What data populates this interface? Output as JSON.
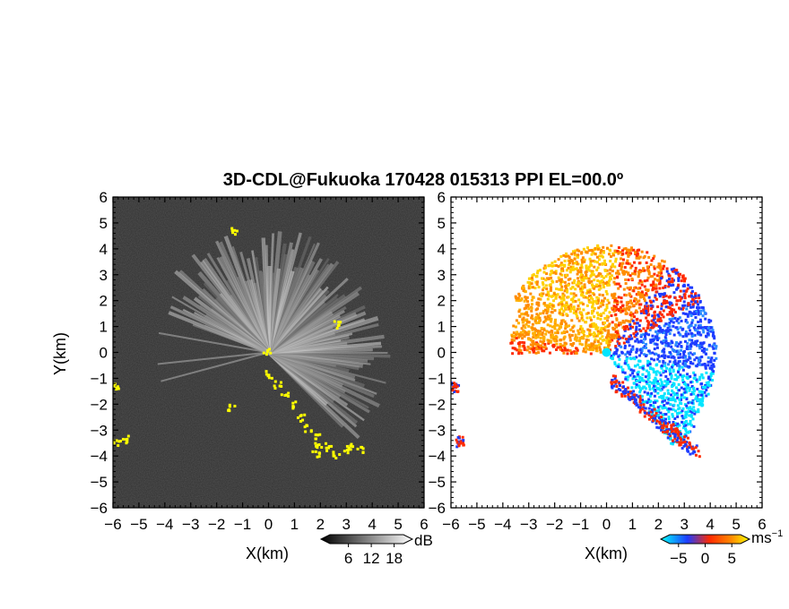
{
  "chart_data": [
    {
      "type": "heatmap",
      "panel": "reflectivity",
      "title": "3D-CDL@Fukuoka 170428 015313 PPI EL=00.0º",
      "xlabel": "X(km)",
      "ylabel": "Y(km)",
      "xlim": [
        -6,
        6
      ],
      "ylim": [
        -6,
        6
      ],
      "xticks": [
        "−6",
        "−5",
        "−4",
        "−3",
        "−2",
        "−1",
        "0",
        "1",
        "2",
        "3",
        "4",
        "5",
        "6"
      ],
      "yticks": [
        "6",
        "5",
        "4",
        "3",
        "2",
        "1",
        "0",
        "−1",
        "−2",
        "−3",
        "−4",
        "−5",
        "−6"
      ],
      "colorbar": {
        "unit": "dB",
        "ticks": [
          "6",
          "12",
          "18"
        ],
        "range": [
          3,
          21
        ],
        "colormap": "grayscale"
      },
      "fan_sector_deg": [
        -45,
        160
      ],
      "max_range_km": 4.8,
      "masked_color": "#ffff00",
      "masked_regions": "yellow clutter along line from (0,-0.7) to (3.5,-4), left edge near x=-6"
    },
    {
      "type": "heatmap",
      "panel": "radial_velocity",
      "xlabel": "X(km)",
      "xlim": [
        -6,
        6
      ],
      "ylim": [
        -6,
        6
      ],
      "xticks": [
        "−6",
        "−5",
        "−4",
        "−3",
        "−2",
        "−1",
        "0",
        "1",
        "2",
        "3",
        "4",
        "5",
        "6"
      ],
      "yticks": [
        "6",
        "5",
        "4",
        "3",
        "2",
        "1",
        "0",
        "−1",
        "−2",
        "−3",
        "−4",
        "−5",
        "−6"
      ],
      "colorbar": {
        "unit": "ms",
        "unit_exponent": "−1",
        "ticks": [
          "−5",
          "0",
          "5"
        ],
        "range": [
          -7,
          7
        ],
        "colormap": "cyan-blue-red-yellow"
      },
      "velocity_pattern": "approaching (blue/cyan) to the east and southeast, receding (orange/yellow) to the northwest and west"
    }
  ],
  "colors": {
    "background": "#ffffff",
    "plot_bg_left": "#303030",
    "cyan": "#00e5ff",
    "blue": "#1e3cff",
    "red": "#ff2a00",
    "orange": "#ff8c00",
    "yellow": "#ffff00"
  }
}
